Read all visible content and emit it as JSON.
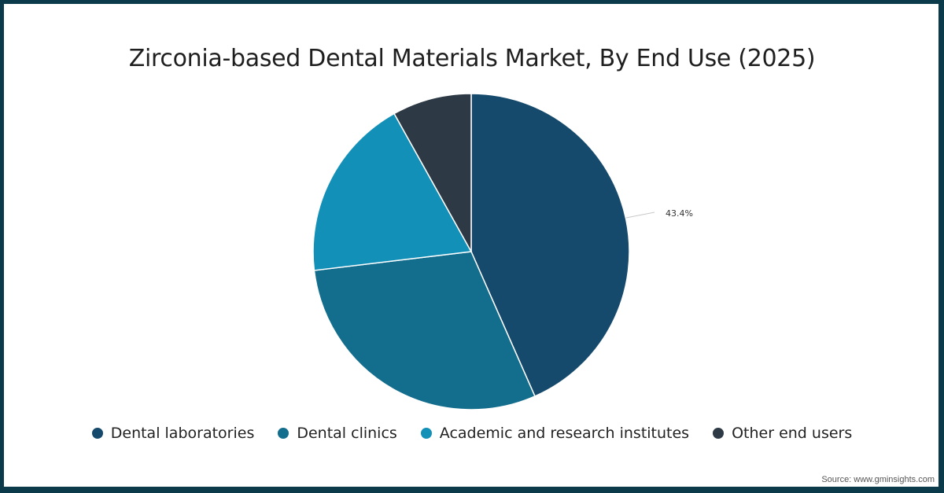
{
  "chart_data": {
    "type": "pie",
    "title": "Zirconia-based Dental Materials Market, By End Use (2025)",
    "categories": [
      "Dental laboratories",
      "Dental clinics",
      "Academic and research institutes",
      "Other end users"
    ],
    "values": [
      43.4,
      29.7,
      18.8,
      8.1
    ],
    "colors": [
      "#164a6c",
      "#136d8d",
      "#1290b8",
      "#2d3a46"
    ],
    "data_labels": [
      {
        "category": "Dental laboratories",
        "text": "43.4%"
      }
    ],
    "legend_position": "bottom",
    "start_angle_deg": 0,
    "direction": "clockwise"
  },
  "title": "Zirconia-based Dental Materials Market, By End Use (2025)",
  "label_main": "43.4%",
  "legend": [
    {
      "label": "Dental laboratories",
      "color": "#164a6c"
    },
    {
      "label": "Dental clinics",
      "color": "#136d8d"
    },
    {
      "label": "Academic and research institutes",
      "color": "#1290b8"
    },
    {
      "label": "Other end users",
      "color": "#2d3a46"
    }
  ],
  "source": "Source: www.gminsights.com",
  "border_color": "#0b3a4a"
}
